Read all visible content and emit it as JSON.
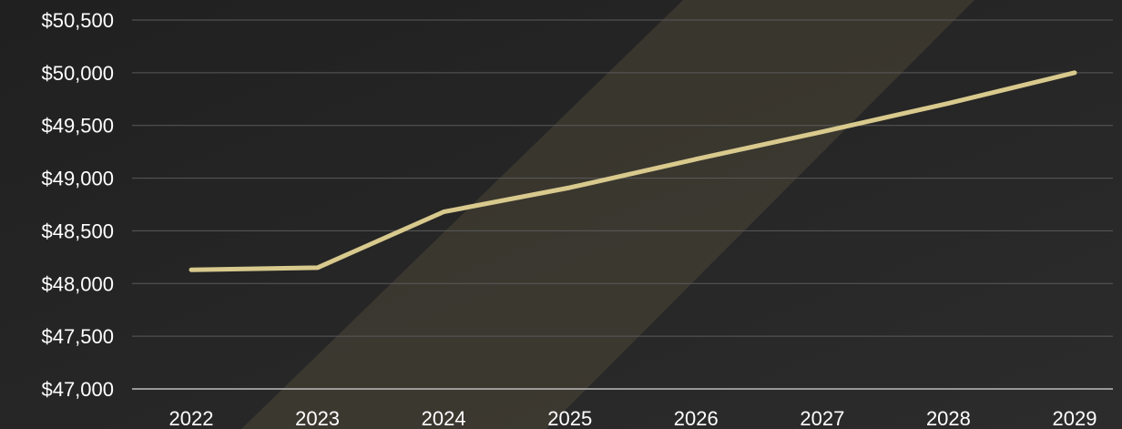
{
  "chart_data": {
    "type": "line",
    "title": "",
    "xlabel": "",
    "ylabel": "",
    "categories": [
      "2022",
      "2023",
      "2024",
      "2025",
      "2026",
      "2027",
      "2028",
      "2029"
    ],
    "series": [
      {
        "values": [
          48130,
          48150,
          48680,
          48910,
          49180,
          49440,
          49710,
          50000
        ]
      }
    ],
    "yticks": [
      47000,
      47500,
      48000,
      48500,
      49000,
      49500,
      50000,
      50500
    ],
    "ytick_labels": [
      "$47,000",
      "$47,500",
      "$48,000",
      "$48,500",
      "$49,000",
      "$49,500",
      "$50,000",
      "$50,500"
    ],
    "ylim": [
      47000,
      50500
    ],
    "grid": true,
    "legend": "none",
    "colors": {
      "background": "#262626",
      "line": "#d8c98d",
      "grid": "#5a5a5a",
      "baseline": "#bdbdbd",
      "text": "#ffffff",
      "band": "#6e6449"
    }
  }
}
